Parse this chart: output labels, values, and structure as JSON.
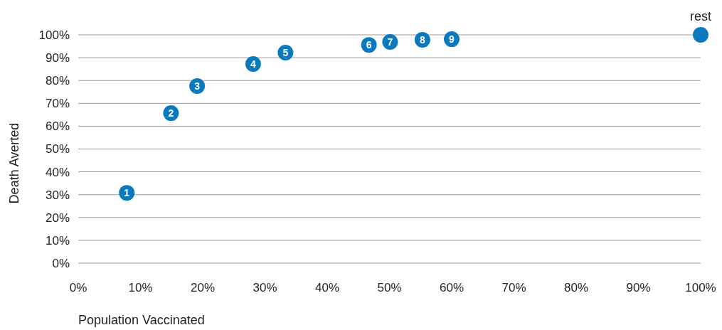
{
  "chart_data": {
    "type": "scatter",
    "xlabel": "Population Vaccinated",
    "ylabel": "Death Averted",
    "x": [
      7.8,
      14.9,
      19.1,
      28.1,
      33.3,
      46.7,
      50.1,
      55.3,
      60.0,
      100
    ],
    "values": [
      30.8,
      65.7,
      77.6,
      87.2,
      92.2,
      95.6,
      96.9,
      97.8,
      98.1,
      100
    ],
    "color": "#0a79be",
    "marker": "circle",
    "grid": "y",
    "xlim": [
      0,
      100
    ],
    "ylim": [
      0,
      100
    ],
    "xticks": [
      {
        "value": 0,
        "label": "0%"
      },
      {
        "value": 10,
        "label": "10%"
      },
      {
        "value": 20,
        "label": "20%"
      },
      {
        "value": 30,
        "label": "30%"
      },
      {
        "value": 40,
        "label": "40%"
      },
      {
        "value": 50,
        "label": "50%"
      },
      {
        "value": 60,
        "label": "60%"
      },
      {
        "value": 70,
        "label": "70%"
      },
      {
        "value": 80,
        "label": "80%"
      },
      {
        "value": 90,
        "label": "90%"
      },
      {
        "value": 100,
        "label": "100%"
      }
    ],
    "yticks": [
      {
        "value": 0,
        "label": "0%"
      },
      {
        "value": 10,
        "label": "10%"
      },
      {
        "value": 20,
        "label": "20%"
      },
      {
        "value": 30,
        "label": "30%"
      },
      {
        "value": 40,
        "label": "40%"
      },
      {
        "value": 50,
        "label": "50%"
      },
      {
        "value": 60,
        "label": "60%"
      },
      {
        "value": 70,
        "label": "70%"
      },
      {
        "value": 80,
        "label": "80%"
      },
      {
        "value": 90,
        "label": "90%"
      },
      {
        "value": 100,
        "label": "100%"
      }
    ],
    "annotations": [
      {
        "text": "1",
        "x": 7.8,
        "y": 30.8
      },
      {
        "text": "2",
        "x": 14.9,
        "y": 65.7
      },
      {
        "text": "3",
        "x": 19.1,
        "y": 77.6
      },
      {
        "text": "4",
        "x": 28.1,
        "y": 87.2
      },
      {
        "text": "5",
        "x": 33.3,
        "y": 92.2
      },
      {
        "text": "6",
        "x": 46.7,
        "y": 95.6
      },
      {
        "text": "7",
        "x": 50.1,
        "y": 96.9
      },
      {
        "text": "8",
        "x": 55.3,
        "y": 97.8
      },
      {
        "text": "9",
        "x": 60.0,
        "y": 98.1
      },
      {
        "text": "rest",
        "x": 100,
        "y": 100
      }
    ]
  }
}
